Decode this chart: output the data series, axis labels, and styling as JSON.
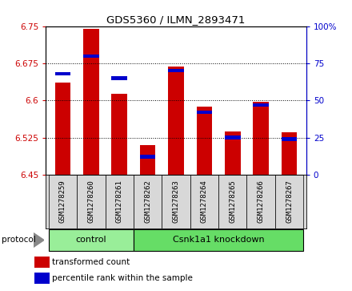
{
  "title": "GDS5360 / ILMN_2893471",
  "samples": [
    "GSM1278259",
    "GSM1278260",
    "GSM1278261",
    "GSM1278262",
    "GSM1278263",
    "GSM1278264",
    "GSM1278265",
    "GSM1278266",
    "GSM1278267"
  ],
  "transformed_count": [
    6.636,
    6.745,
    6.613,
    6.51,
    6.668,
    6.587,
    6.537,
    6.597,
    6.536
  ],
  "percentile_rank": [
    68,
    80,
    65,
    12,
    70,
    42,
    25,
    47,
    24
  ],
  "ylim_left": [
    6.45,
    6.75
  ],
  "ylim_right": [
    0,
    100
  ],
  "yticks_left": [
    6.45,
    6.525,
    6.6,
    6.675,
    6.75
  ],
  "yticks_right": [
    0,
    25,
    50,
    75,
    100
  ],
  "bar_color_red": "#cc0000",
  "bar_color_blue": "#0000cc",
  "bar_width": 0.55,
  "groups": [
    {
      "label": "control",
      "n_samples": 3,
      "color": "#99ee99"
    },
    {
      "label": "Csnk1a1 knockdown",
      "n_samples": 6,
      "color": "#66dd66"
    }
  ],
  "protocol_label": "protocol",
  "legend_items": [
    {
      "label": "transformed count",
      "color": "#cc0000"
    },
    {
      "label": "percentile rank within the sample",
      "color": "#0000cc"
    }
  ],
  "tick_label_color_left": "#cc0000",
  "tick_label_color_right": "#0000cc",
  "background_color": "#ffffff",
  "bar_bottom": 6.45,
  "blue_bar_height": 0.007
}
